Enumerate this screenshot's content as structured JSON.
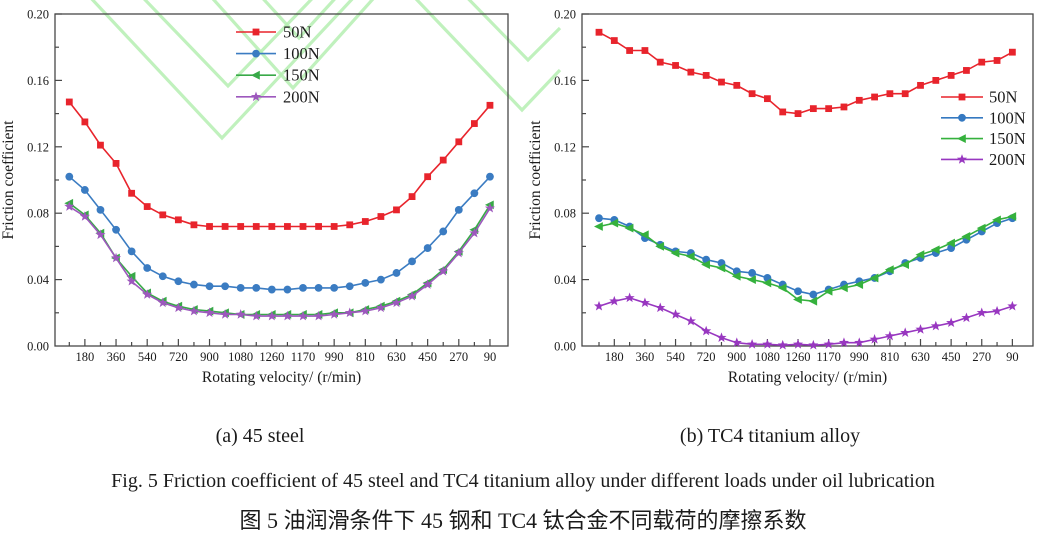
{
  "figure": {
    "sub_caption_a": "(a) 45 steel",
    "sub_caption_b": "(b) TC4 titanium alloy",
    "caption_en": "Fig. 5 Friction coefficient of 45 steel and TC4 titanium alloy under different loads under oil lubrication",
    "caption_zh": "图 5  油润滑条件下 45 钢和 TC4 钛合金不同载荷的摩擦系数"
  },
  "watermark_color": "#b5efb2",
  "axis_color": "#474747",
  "chart_data": [
    {
      "id": "a",
      "type": "line",
      "title": "(a) 45 steel",
      "xlabel": "Rotating velocity/ (r/min)",
      "ylabel": "Friction coefficient",
      "ylim": [
        0.0,
        0.2
      ],
      "ytick_step": 0.04,
      "ytick_labels": [
        "0.00",
        "0.04",
        "0.08",
        "0.12",
        "0.16",
        "0.20"
      ],
      "xtick_labels": [
        "180",
        "360",
        "540",
        "720",
        "900",
        "1080",
        "1260",
        "1170",
        "990",
        "810",
        "630",
        "450",
        "270",
        "90"
      ],
      "x_velocities": [
        90,
        180,
        270,
        360,
        450,
        540,
        630,
        720,
        810,
        900,
        990,
        1080,
        1170,
        1260,
        1260,
        1170,
        1080,
        990,
        900,
        810,
        720,
        630,
        540,
        450,
        360,
        270,
        180,
        90
      ],
      "legend_position": "top-center",
      "series": [
        {
          "name": "50N",
          "marker": "square",
          "color": "#e8242c",
          "values": [
            0.147,
            0.135,
            0.121,
            0.11,
            0.092,
            0.084,
            0.079,
            0.076,
            0.073,
            0.072,
            0.072,
            0.072,
            0.072,
            0.072,
            0.072,
            0.072,
            0.072,
            0.072,
            0.073,
            0.075,
            0.078,
            0.082,
            0.09,
            0.102,
            0.112,
            0.123,
            0.134,
            0.145
          ]
        },
        {
          "name": "100N",
          "marker": "circle",
          "color": "#3b7cc2",
          "values": [
            0.102,
            0.094,
            0.082,
            0.07,
            0.057,
            0.047,
            0.042,
            0.039,
            0.037,
            0.036,
            0.036,
            0.035,
            0.035,
            0.034,
            0.034,
            0.035,
            0.035,
            0.035,
            0.036,
            0.038,
            0.04,
            0.044,
            0.051,
            0.059,
            0.069,
            0.082,
            0.092,
            0.102
          ]
        },
        {
          "name": "150N",
          "marker": "triangle-left",
          "color": "#38a948",
          "values": [
            0.086,
            0.079,
            0.068,
            0.053,
            0.042,
            0.032,
            0.027,
            0.024,
            0.022,
            0.021,
            0.02,
            0.019,
            0.019,
            0.019,
            0.019,
            0.019,
            0.019,
            0.02,
            0.02,
            0.022,
            0.024,
            0.027,
            0.031,
            0.038,
            0.046,
            0.057,
            0.07,
            0.085
          ]
        },
        {
          "name": "200N",
          "marker": "star",
          "color": "#9d58bd",
          "values": [
            0.084,
            0.078,
            0.067,
            0.053,
            0.039,
            0.031,
            0.026,
            0.023,
            0.021,
            0.02,
            0.019,
            0.019,
            0.018,
            0.018,
            0.018,
            0.018,
            0.018,
            0.019,
            0.02,
            0.021,
            0.023,
            0.026,
            0.03,
            0.037,
            0.045,
            0.056,
            0.068,
            0.083
          ]
        }
      ]
    },
    {
      "id": "b",
      "type": "line",
      "title": "(b) TC4 titanium alloy",
      "xlabel": "Rotating velocity/ (r/min)",
      "ylabel": "Friction coefficient",
      "ylim": [
        0.0,
        0.2
      ],
      "ytick_step": 0.04,
      "ytick_labels": [
        "0.00",
        "0.04",
        "0.08",
        "0.12",
        "0.16",
        "0.20"
      ],
      "xtick_labels": [
        "180",
        "360",
        "540",
        "720",
        "900",
        "1080",
        "1260",
        "1170",
        "990",
        "810",
        "630",
        "450",
        "270",
        "90"
      ],
      "x_velocities": [
        90,
        180,
        270,
        360,
        450,
        540,
        630,
        720,
        810,
        900,
        990,
        1080,
        1170,
        1260,
        1260,
        1170,
        1080,
        990,
        900,
        810,
        720,
        630,
        540,
        450,
        360,
        270,
        180,
        90
      ],
      "legend_position": "right-middle",
      "series": [
        {
          "name": "50N",
          "marker": "square",
          "color": "#e8242c",
          "values": [
            0.189,
            0.184,
            0.178,
            0.178,
            0.171,
            0.169,
            0.165,
            0.163,
            0.159,
            0.157,
            0.152,
            0.149,
            0.141,
            0.14,
            0.143,
            0.143,
            0.144,
            0.148,
            0.15,
            0.152,
            0.152,
            0.157,
            0.16,
            0.163,
            0.166,
            0.171,
            0.172,
            0.177
          ]
        },
        {
          "name": "100N",
          "marker": "circle",
          "color": "#3579c1",
          "values": [
            0.077,
            0.076,
            0.072,
            0.065,
            0.061,
            0.057,
            0.056,
            0.052,
            0.05,
            0.045,
            0.044,
            0.041,
            0.037,
            0.033,
            0.031,
            0.034,
            0.037,
            0.039,
            0.041,
            0.045,
            0.05,
            0.053,
            0.056,
            0.059,
            0.064,
            0.069,
            0.074,
            0.077
          ]
        },
        {
          "name": "150N",
          "marker": "triangle-left",
          "color": "#35b13d",
          "values": [
            0.072,
            0.074,
            0.071,
            0.067,
            0.06,
            0.056,
            0.054,
            0.049,
            0.047,
            0.042,
            0.04,
            0.038,
            0.035,
            0.028,
            0.027,
            0.033,
            0.035,
            0.037,
            0.041,
            0.046,
            0.049,
            0.055,
            0.058,
            0.062,
            0.066,
            0.071,
            0.076,
            0.078
          ]
        },
        {
          "name": "200N",
          "marker": "star",
          "color": "#9837c0",
          "values": [
            0.024,
            0.027,
            0.029,
            0.026,
            0.023,
            0.019,
            0.015,
            0.009,
            0.005,
            0.002,
            0.001,
            0.001,
            0.0005,
            0.001,
            0.0005,
            0.001,
            0.002,
            0.002,
            0.004,
            0.006,
            0.008,
            0.01,
            0.012,
            0.014,
            0.017,
            0.02,
            0.021,
            0.024
          ]
        }
      ]
    }
  ]
}
